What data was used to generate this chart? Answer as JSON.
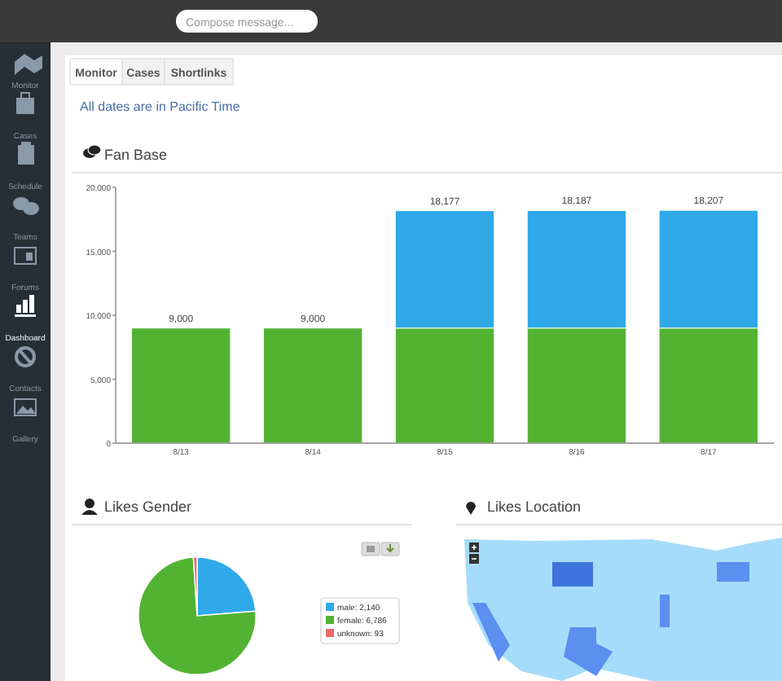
{
  "chart_data": [
    {
      "type": "bar",
      "title": "Fan Base",
      "subtitle": "All dates are in Pacific Time",
      "annotations": [
        "Compose message...",
        "Monitor",
        "Cases",
        "Shortlinks",
        "Monitor",
        "Cases",
        "Schedule",
        "Teams",
        "Forums",
        "Dashboard",
        "Contacts",
        "Gallery"
      ],
      "categories": [
        "8/13",
        "8/14",
        "8/15",
        "8/16",
        "8/17"
      ],
      "stacked": true,
      "series": [
        {
          "color": "#52b333",
          "values": [
            9000,
            9000,
            9000,
            9000,
            9000
          ]
        },
        {
          "color": "#2fa9e8",
          "values": [
            null,
            null,
            9177,
            9187,
            9207
          ]
        }
      ],
      "totals": [
        "9,000",
        "9,000",
        "18,177",
        "18,187",
        "18,207"
      ],
      "ylim": [
        0,
        20000
      ],
      "yticks": [
        {
          "value": 0,
          "label": "0"
        },
        {
          "value": 5000,
          "label": "5,000"
        },
        {
          "value": 10000,
          "label": "10,000"
        },
        {
          "value": 15000,
          "label": "15,000"
        },
        {
          "value": 20000,
          "label": "20,000"
        }
      ]
    },
    {
      "type": "pie",
      "title": "Likes Gender",
      "categories": [
        "male: 2,140",
        "female: 6,786",
        "unknown: 93"
      ],
      "values": [
        2140,
        6786,
        93
      ],
      "colors": [
        "#2fa9e8",
        "#52b333",
        "#f06a6a"
      ],
      "legend": "right"
    },
    {
      "type": "other",
      "title": "Likes Location"
    }
  ]
}
